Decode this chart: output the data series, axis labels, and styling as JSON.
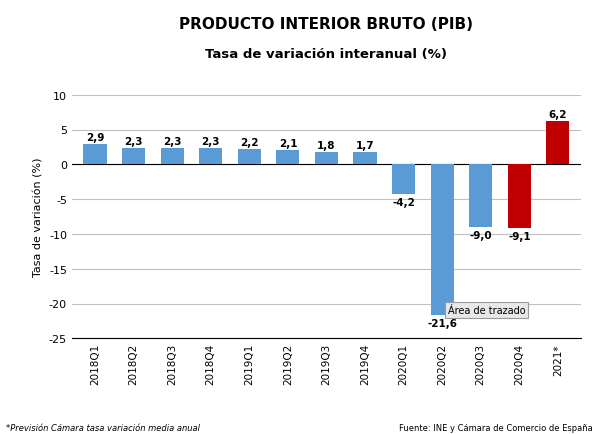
{
  "categories": [
    "2018Q1",
    "2018Q2",
    "2018Q3",
    "2018Q4",
    "2019Q1",
    "2019Q2",
    "2019Q3",
    "2019Q4",
    "2020Q1",
    "2020Q2",
    "2020Q3",
    "2020Q4",
    "2021*"
  ],
  "values": [
    2.9,
    2.3,
    2.3,
    2.3,
    2.2,
    2.1,
    1.8,
    1.7,
    -4.2,
    -21.6,
    -9.0,
    -9.1,
    6.2
  ],
  "bar_colors": [
    "#5b9bd5",
    "#5b9bd5",
    "#5b9bd5",
    "#5b9bd5",
    "#5b9bd5",
    "#5b9bd5",
    "#5b9bd5",
    "#5b9bd5",
    "#5b9bd5",
    "#5b9bd5",
    "#5b9bd5",
    "#c00000",
    "#c00000"
  ],
  "title1": "PRODUCTO INTERIOR BRUTO (PIB)",
  "title2": "Tasa de variación interanual (%)",
  "ylabel": "Tasa de variación (%)",
  "ylim": [
    -25,
    10
  ],
  "yticks": [
    -25,
    -20,
    -15,
    -10,
    -5,
    0,
    5,
    10
  ],
  "footnote_left": "*Previsión Cámara tasa variación media anual",
  "footnote_right": "Fuente: INE y Cámara de Comercio de España",
  "area_label": "Área de trazado",
  "background_color": "#ffffff",
  "grid_color": "#c0c0c0",
  "value_labels": [
    "2,9",
    "2,3",
    "2,3",
    "2,3",
    "2,2",
    "2,1",
    "1,8",
    "1,7",
    "-4,2",
    "-21,6",
    "-9,0",
    "-9,1",
    "6,2"
  ]
}
